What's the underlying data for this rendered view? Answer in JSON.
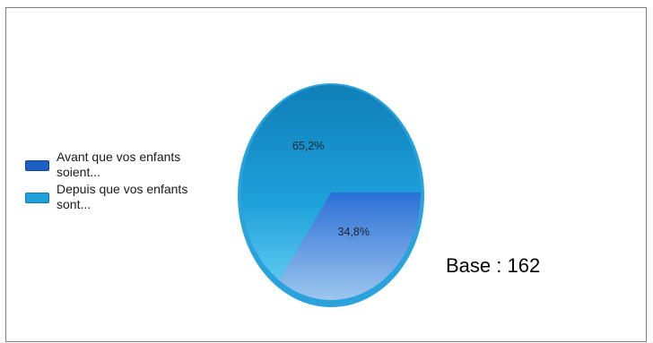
{
  "chart_data": {
    "type": "pie",
    "title": "",
    "categories": [
      "Avant que vos enfants soient...",
      "Depuis que vos enfants sont..."
    ],
    "values": [
      34.8,
      65.2
    ],
    "value_labels": [
      "34,8%",
      "65,2%"
    ],
    "colors": [
      "#1e5fc4",
      "#1ea0da"
    ],
    "legend_position": "left",
    "start_angle_deg": 0,
    "direction": "clockwise"
  },
  "legend": {
    "items": [
      {
        "label": "Avant que vos enfants soient...",
        "color": "#1e5fc4"
      },
      {
        "label": "Depuis que vos enfants sont...",
        "color": "#1ea0da"
      }
    ]
  },
  "base_text": "Base : 162"
}
